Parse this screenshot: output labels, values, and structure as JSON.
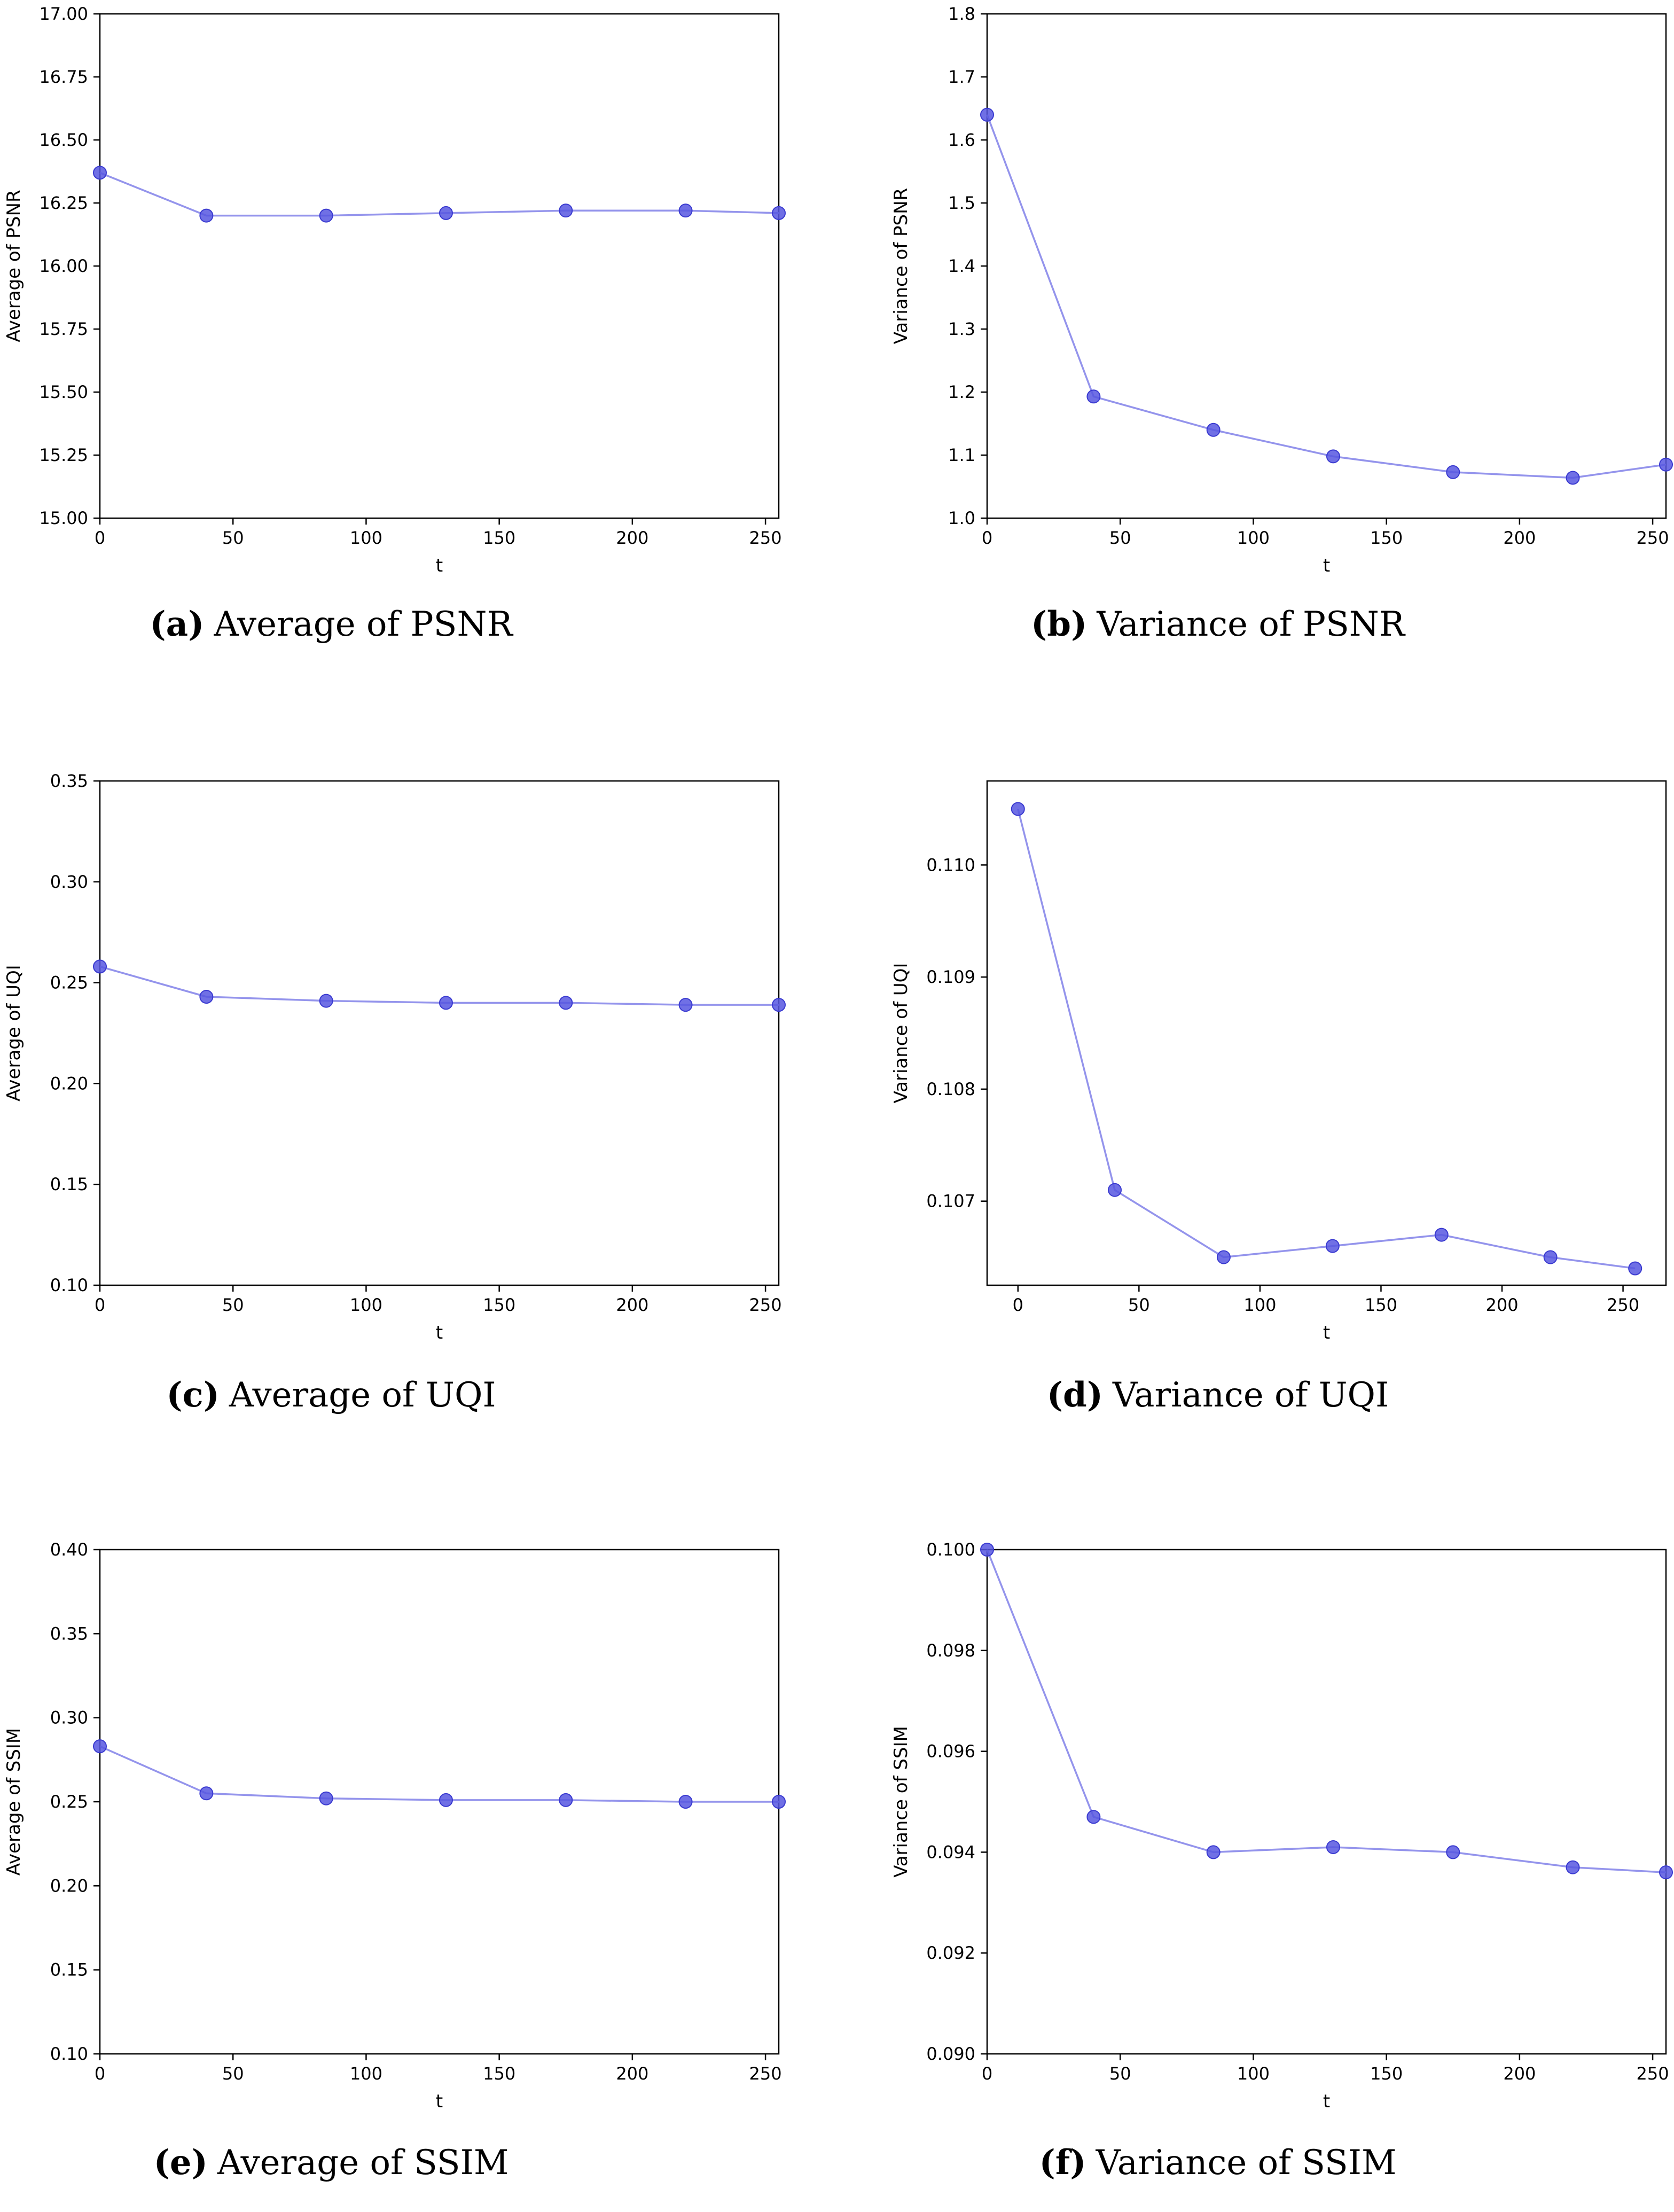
{
  "chart_data": [
    {
      "type": "line",
      "caption_letter": "(a)",
      "caption": "Average of PSNR",
      "xlabel": "t",
      "ylabel": "Average of PSNR",
      "xlim": [
        0,
        255
      ],
      "ylim": [
        15.0,
        17.0
      ],
      "xticks": [
        0,
        50,
        100,
        150,
        200,
        250
      ],
      "xtick_labels": [
        "0",
        "50",
        "100",
        "150",
        "200",
        "250"
      ],
      "yticks": [
        15.0,
        15.25,
        15.5,
        15.75,
        16.0,
        16.25,
        16.5,
        16.75,
        17.0
      ],
      "ytick_labels": [
        "15.00",
        "15.25",
        "15.50",
        "15.75",
        "16.00",
        "16.25",
        "16.50",
        "16.75",
        "17.00"
      ],
      "x": [
        0,
        40,
        85,
        130,
        175,
        220,
        255
      ],
      "y": [
        16.37,
        16.2,
        16.2,
        16.21,
        16.22,
        16.22,
        16.21
      ]
    },
    {
      "type": "line",
      "caption_letter": "(b)",
      "caption": "Variance of PSNR",
      "xlabel": "t",
      "ylabel": "Variance of PSNR",
      "xlim": [
        0,
        255
      ],
      "ylim": [
        1.0,
        1.8
      ],
      "xticks": [
        0,
        50,
        100,
        150,
        200,
        250
      ],
      "xtick_labels": [
        "0",
        "50",
        "100",
        "150",
        "200",
        "250"
      ],
      "yticks": [
        1.0,
        1.1,
        1.2,
        1.3,
        1.4,
        1.5,
        1.6,
        1.7,
        1.8
      ],
      "ytick_labels": [
        "1.0",
        "1.1",
        "1.2",
        "1.3",
        "1.4",
        "1.5",
        "1.6",
        "1.7",
        "1.8"
      ],
      "x": [
        0,
        40,
        85,
        130,
        175,
        220,
        255
      ],
      "y": [
        1.64,
        1.193,
        1.14,
        1.098,
        1.073,
        1.064,
        1.085
      ]
    },
    {
      "type": "line",
      "caption_letter": "(c)",
      "caption": "Average of UQI",
      "xlabel": "t",
      "ylabel": "Average of UQI",
      "xlim": [
        0,
        255
      ],
      "ylim": [
        0.1,
        0.35
      ],
      "xticks": [
        0,
        50,
        100,
        150,
        200,
        250
      ],
      "xtick_labels": [
        "0",
        "50",
        "100",
        "150",
        "200",
        "250"
      ],
      "yticks": [
        0.1,
        0.15,
        0.2,
        0.25,
        0.3,
        0.35
      ],
      "ytick_labels": [
        "0.10",
        "0.15",
        "0.20",
        "0.25",
        "0.30",
        "0.35"
      ],
      "x": [
        0,
        40,
        85,
        130,
        175,
        220,
        255
      ],
      "y": [
        0.258,
        0.243,
        0.241,
        0.24,
        0.24,
        0.239,
        0.239
      ]
    },
    {
      "type": "line",
      "caption_letter": "(d)",
      "caption": "Variance of UQI",
      "xlabel": "t",
      "ylabel": "Variance of UQI",
      "xlim": [
        -12.75,
        267.75
      ],
      "ylim": [
        0.10625,
        0.11075
      ],
      "xticks": [
        0,
        50,
        100,
        150,
        200,
        250
      ],
      "xtick_labels": [
        "0",
        "50",
        "100",
        "150",
        "200",
        "250"
      ],
      "yticks": [
        0.107,
        0.108,
        0.109,
        0.11
      ],
      "ytick_labels": [
        "0.107",
        "0.108",
        "0.109",
        "0.110"
      ],
      "x": [
        0,
        40,
        85,
        130,
        175,
        220,
        255
      ],
      "y": [
        0.1105,
        0.1071,
        0.1065,
        0.1066,
        0.1067,
        0.1065,
        0.1064
      ]
    },
    {
      "type": "line",
      "caption_letter": "(e)",
      "caption": "Average of SSIM",
      "xlabel": "t",
      "ylabel": "Average of SSIM",
      "xlim": [
        0,
        255
      ],
      "ylim": [
        0.1,
        0.4
      ],
      "xticks": [
        0,
        50,
        100,
        150,
        200,
        250
      ],
      "xtick_labels": [
        "0",
        "50",
        "100",
        "150",
        "200",
        "250"
      ],
      "yticks": [
        0.1,
        0.15,
        0.2,
        0.25,
        0.3,
        0.35,
        0.4
      ],
      "ytick_labels": [
        "0.10",
        "0.15",
        "0.20",
        "0.25",
        "0.30",
        "0.35",
        "0.40"
      ],
      "x": [
        0,
        40,
        85,
        130,
        175,
        220,
        255
      ],
      "y": [
        0.283,
        0.255,
        0.252,
        0.251,
        0.251,
        0.25,
        0.25
      ]
    },
    {
      "type": "line",
      "caption_letter": "(f)",
      "caption": "Variance of SSIM",
      "xlabel": "t",
      "ylabel": "Variance of SSIM",
      "xlim": [
        0,
        255
      ],
      "ylim": [
        0.09,
        0.1
      ],
      "xticks": [
        0,
        50,
        100,
        150,
        200,
        250
      ],
      "xtick_labels": [
        "0",
        "50",
        "100",
        "150",
        "200",
        "250"
      ],
      "yticks": [
        0.09,
        0.092,
        0.094,
        0.096,
        0.098,
        0.1
      ],
      "ytick_labels": [
        "0.090",
        "0.092",
        "0.094",
        "0.096",
        "0.098",
        "0.100"
      ],
      "x": [
        0,
        40,
        85,
        130,
        175,
        220,
        255
      ],
      "y": [
        0.1,
        0.0947,
        0.094,
        0.0941,
        0.094,
        0.0937,
        0.0936
      ]
    }
  ]
}
